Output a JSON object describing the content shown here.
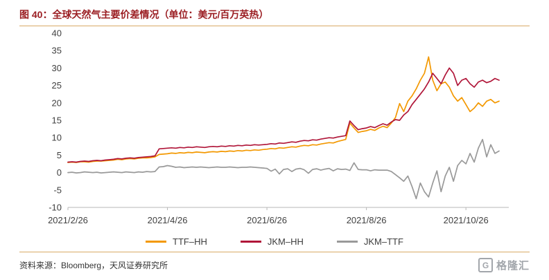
{
  "page": {
    "background": "#ffffff"
  },
  "header": {
    "title": "图 40：全球天然气主要价差情况（单位：美元/百万英热）",
    "title_color": "#9B1E23",
    "divider_color": "#D9A964"
  },
  "footer": {
    "source_text": "资料来源：Bloomberg，天风证券研究所",
    "divider_color": "#D9A964",
    "text_color": "#333333"
  },
  "logo": {
    "letter": "G",
    "text": "格隆汇",
    "color": "#A2A6AB"
  },
  "chart_data": {
    "type": "line",
    "title": "",
    "xlabel": "",
    "ylabel": "",
    "ylim": [
      -10,
      40
    ],
    "y_ticks": [
      40,
      35,
      30,
      25,
      20,
      15,
      10,
      5,
      0,
      -5,
      -10
    ],
    "grid": false,
    "legend_position": "bottom",
    "axis_color": "#B7B7B7",
    "tick_label_color": "#404040",
    "x_tick_labels": [
      "2021/2/26",
      "2021/4/26",
      "2021/6/26",
      "2021/8/26",
      "2021/10/26"
    ],
    "x_tick_indices": [
      0,
      24,
      48,
      72,
      96
    ],
    "n_points": 105,
    "series": [
      {
        "name": "TTF–HH",
        "color": "#F39800",
        "values": [
          2.9,
          3.0,
          2.9,
          3.1,
          3.1,
          3.0,
          3.2,
          3.3,
          3.3,
          3.4,
          3.5,
          3.6,
          3.8,
          3.7,
          3.9,
          4.0,
          3.9,
          4.1,
          4.2,
          4.2,
          4.3,
          4.5,
          5.2,
          5.3,
          5.4,
          5.6,
          5.5,
          5.7,
          5.6,
          5.8,
          5.7,
          5.9,
          5.8,
          5.7,
          5.9,
          6.0,
          5.9,
          6.1,
          6.0,
          6.2,
          6.1,
          6.3,
          6.2,
          6.4,
          6.3,
          6.5,
          6.4,
          6.6,
          6.7,
          6.9,
          6.8,
          7.1,
          7.0,
          7.2,
          7.4,
          7.3,
          7.6,
          7.8,
          7.7,
          8.0,
          7.9,
          8.2,
          8.4,
          8.6,
          8.5,
          8.9,
          9.2,
          9.5,
          14.2,
          12.8,
          11.5,
          11.8,
          12.0,
          12.4,
          12.1,
          12.8,
          13.3,
          12.9,
          14.2,
          15.8,
          19.8,
          17.5,
          20.5,
          22.0,
          24.0,
          26.5,
          28.5,
          33.2,
          26.5,
          23.5,
          25.5,
          26.0,
          24.5,
          22.0,
          20.5,
          21.5,
          19.5,
          17.5,
          18.5,
          20.0,
          19.0,
          20.5,
          21.0,
          20.0,
          20.5
        ]
      },
      {
        "name": "JKM–HH",
        "color": "#B01538",
        "values": [
          3.0,
          3.1,
          3.0,
          3.2,
          3.3,
          3.2,
          3.4,
          3.5,
          3.4,
          3.6,
          3.7,
          3.8,
          4.0,
          3.9,
          4.1,
          4.2,
          4.1,
          4.3,
          4.4,
          4.5,
          4.6,
          4.8,
          6.8,
          6.9,
          7.0,
          7.1,
          7.0,
          7.2,
          7.1,
          7.3,
          7.2,
          7.4,
          7.3,
          7.2,
          7.4,
          7.5,
          7.4,
          7.6,
          7.5,
          7.7,
          7.6,
          7.8,
          7.7,
          7.9,
          7.8,
          8.0,
          7.9,
          8.0,
          8.1,
          8.3,
          8.2,
          8.5,
          8.4,
          8.6,
          8.8,
          8.7,
          9.0,
          9.2,
          9.1,
          9.4,
          9.3,
          9.6,
          9.8,
          10.0,
          9.9,
          10.2,
          10.4,
          10.6,
          14.8,
          13.5,
          12.3,
          12.6,
          12.8,
          13.2,
          12.9,
          13.5,
          14.0,
          13.6,
          14.5,
          15.2,
          15.0,
          16.5,
          17.5,
          19.5,
          21.0,
          22.5,
          24.0,
          26.0,
          28.5,
          27.0,
          25.5,
          28.0,
          30.0,
          28.5,
          25.0,
          26.5,
          27.0,
          25.5,
          24.5,
          26.0,
          26.5,
          25.8,
          26.2,
          27.0,
          26.5
        ]
      },
      {
        "name": "JKM–TTF",
        "color": "#999999",
        "values": [
          0.0,
          0.1,
          -0.1,
          0.0,
          0.2,
          0.1,
          0.0,
          0.1,
          -0.1,
          0.0,
          0.1,
          0.2,
          0.1,
          0.0,
          0.2,
          0.1,
          0.0,
          0.2,
          0.1,
          0.3,
          0.2,
          0.3,
          1.6,
          1.7,
          2.0,
          1.8,
          1.5,
          1.6,
          1.4,
          1.5,
          1.6,
          1.5,
          1.6,
          1.5,
          1.4,
          1.5,
          1.6,
          1.5,
          1.5,
          1.6,
          1.5,
          1.4,
          1.5,
          1.5,
          1.6,
          1.5,
          1.4,
          1.3,
          1.2,
          0.4,
          1.0,
          -0.4,
          0.9,
          1.1,
          0.3,
          1.0,
          1.2,
          0.8,
          -0.2,
          0.9,
          1.1,
          0.7,
          1.0,
          1.2,
          0.5,
          1.1,
          0.9,
          1.0,
          0.6,
          2.8,
          0.9,
          0.8,
          0.8,
          0.5,
          0.8,
          0.7,
          0.7,
          0.7,
          0.3,
          -0.6,
          -1.5,
          -2.5,
          -1.0,
          -4.0,
          -7.5,
          -3.0,
          -5.5,
          -7.0,
          -3.0,
          0.5,
          -5.5,
          -1.0,
          1.5,
          -2.5,
          2.0,
          3.5,
          2.5,
          5.5,
          3.0,
          7.0,
          9.5,
          4.5,
          8.0,
          5.5,
          6.2
        ]
      }
    ]
  }
}
